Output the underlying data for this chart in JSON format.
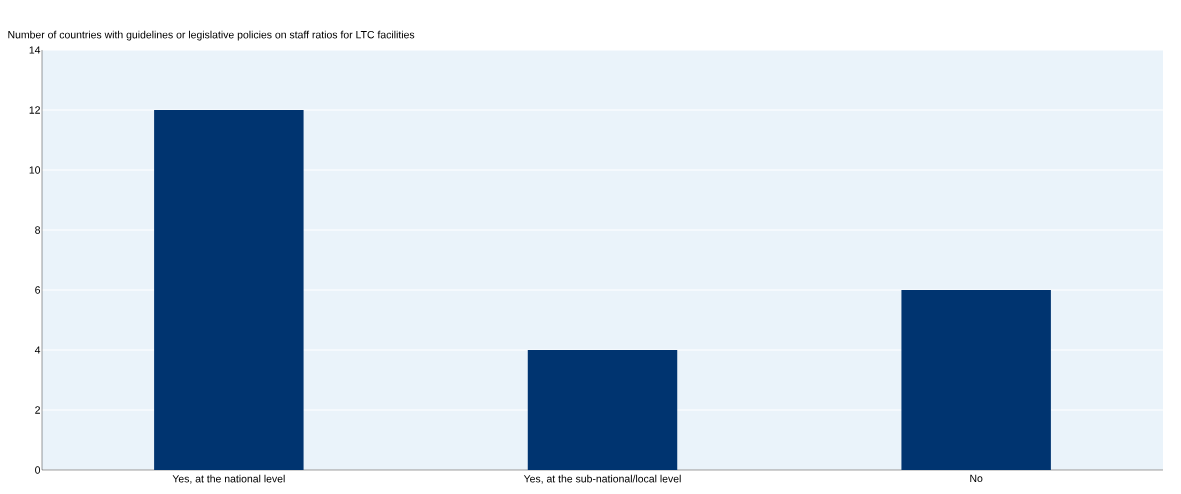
{
  "chart_data": {
    "type": "bar",
    "ylabel": "Number of countries with guidelines or legislative policies on staff ratios for LTC facilities",
    "categories": [
      "Yes, at the national level",
      "Yes, at the sub-national/local level",
      "No"
    ],
    "values": [
      12,
      4,
      6
    ],
    "color": "#003470",
    "ylim": [
      0,
      14
    ],
    "yticks": [
      0,
      2,
      4,
      6,
      8,
      10,
      12,
      14
    ],
    "grid": "y"
  }
}
